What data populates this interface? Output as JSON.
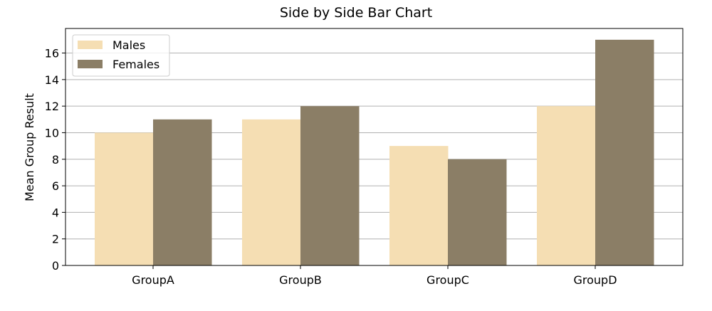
{
  "chart_data": {
    "type": "bar",
    "title": "Side by Side Bar Chart",
    "xlabel": "",
    "ylabel": "Mean Group Result",
    "categories": [
      "GroupA",
      "GroupB",
      "GroupC",
      "GroupD"
    ],
    "series": [
      {
        "name": "Males",
        "values": [
          10,
          11,
          9,
          12
        ],
        "color": "#F5DEB3"
      },
      {
        "name": "Females",
        "values": [
          11,
          12,
          8,
          17
        ],
        "color": "#8B7E66"
      }
    ],
    "ylim": [
      0,
      17.85
    ],
    "yticks": [
      0,
      2,
      4,
      6,
      8,
      10,
      12,
      14,
      16
    ],
    "grid": "y-major",
    "legend_position": "top-left"
  }
}
